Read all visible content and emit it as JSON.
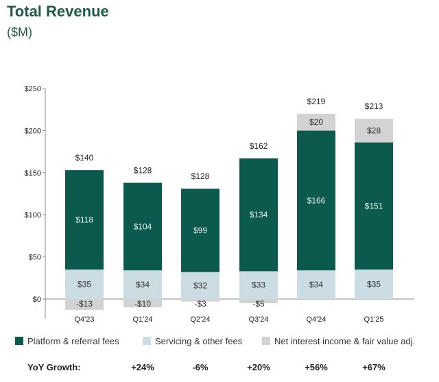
{
  "title": "Total Revenue",
  "subtitle": "($M)",
  "colors": {
    "title": "#1d5a48",
    "platform": "#0b5a4d",
    "servicing": "#cbdde2",
    "net_interest": "#d3d3d3",
    "axis": "#888888"
  },
  "yoy": {
    "label": "YoY Growth:",
    "values": [
      "+24%",
      "-6%",
      "+20%",
      "+56%",
      "+67%"
    ]
  },
  "chart_data": {
    "type": "bar",
    "stacked": true,
    "categories": [
      "Q4'23",
      "Q1'24",
      "Q2'24",
      "Q3'24",
      "Q4'24",
      "Q1'25"
    ],
    "series": [
      {
        "name": "Platform & referral fees",
        "values": [
          118,
          104,
          99,
          134,
          166,
          151
        ],
        "labels": [
          "$118",
          "$104",
          "$99",
          "$134",
          "$166",
          "$151"
        ]
      },
      {
        "name": "Servicing & other fees",
        "values": [
          35,
          34,
          32,
          33,
          34,
          35
        ],
        "labels": [
          "$35",
          "$34",
          "$32",
          "$33",
          "$34",
          "$35"
        ]
      },
      {
        "name": "Net interest income & fair value adj.",
        "values": [
          -13,
          -10,
          -3,
          -5,
          20,
          28
        ],
        "labels": [
          "-$13",
          "-$10",
          "-$3",
          "-$5",
          "$20",
          "$28"
        ]
      }
    ],
    "totals": [
      140,
      128,
      128,
      162,
      219,
      213
    ],
    "total_labels": [
      "$140",
      "$128",
      "$128",
      "$162",
      "$219",
      "$213"
    ],
    "ylim": [
      -15,
      250
    ],
    "yticks": [
      0,
      50,
      100,
      150,
      200,
      250
    ],
    "ytick_labels": [
      "$0",
      "$50",
      "$100",
      "$150",
      "$200",
      "$250"
    ],
    "legend_position": "bottom",
    "grid": false
  }
}
